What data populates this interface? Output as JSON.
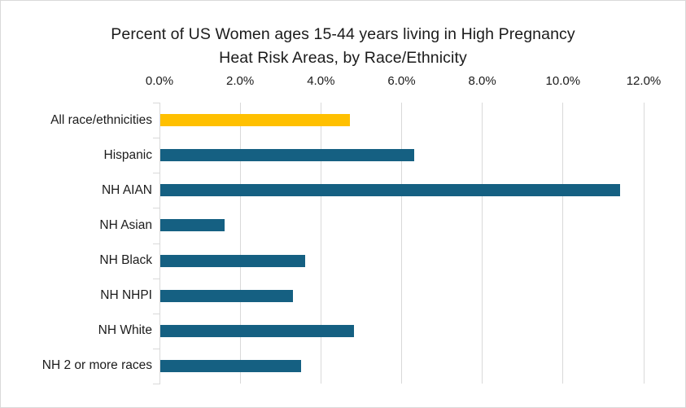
{
  "window": {
    "kind": "embedded-chart-image",
    "background": "#ffffff",
    "border_color": "#d9d9d9"
  },
  "chart_data": {
    "type": "bar",
    "orientation": "horizontal",
    "title": "Percent of US Women ages 15-44 years living in High Pregnancy Heat Risk Areas, by Race/Ethnicity",
    "title_lines": [
      "Percent of US Women ages 15-44 years living in High Pregnancy",
      "Heat Risk Areas, by Race/Ethnicity"
    ],
    "categories": [
      "All race/ethnicities",
      "Hispanic",
      "NH AIAN",
      "NH Asian",
      "NH Black",
      "NH NHPI",
      "NH White",
      "NH 2 or more races"
    ],
    "values": [
      4.7,
      6.3,
      11.4,
      1.6,
      3.6,
      3.3,
      4.8,
      3.5
    ],
    "unit": "%",
    "bar_colors": [
      "#FFC000",
      "#156082",
      "#156082",
      "#156082",
      "#156082",
      "#156082",
      "#156082",
      "#156082"
    ],
    "xlabel": "",
    "ylabel": "",
    "x_axis": {
      "position": "top",
      "min": 0,
      "max": 12,
      "tick_values": [
        0,
        2,
        4,
        6,
        8,
        10,
        12
      ],
      "tick_labels": [
        "0.0%",
        "2.0%",
        "4.0%",
        "6.0%",
        "8.0%",
        "10.0%",
        "12.0%"
      ]
    },
    "grid": {
      "vertical": true,
      "horizontal": false,
      "color": "#d9d9d9"
    },
    "legend": "none"
  },
  "styles": {
    "text_color": "#1b1b1b",
    "grid_color": "#d9d9d9",
    "highlight_bar_color": "#FFC000",
    "default_bar_color": "#156082"
  }
}
